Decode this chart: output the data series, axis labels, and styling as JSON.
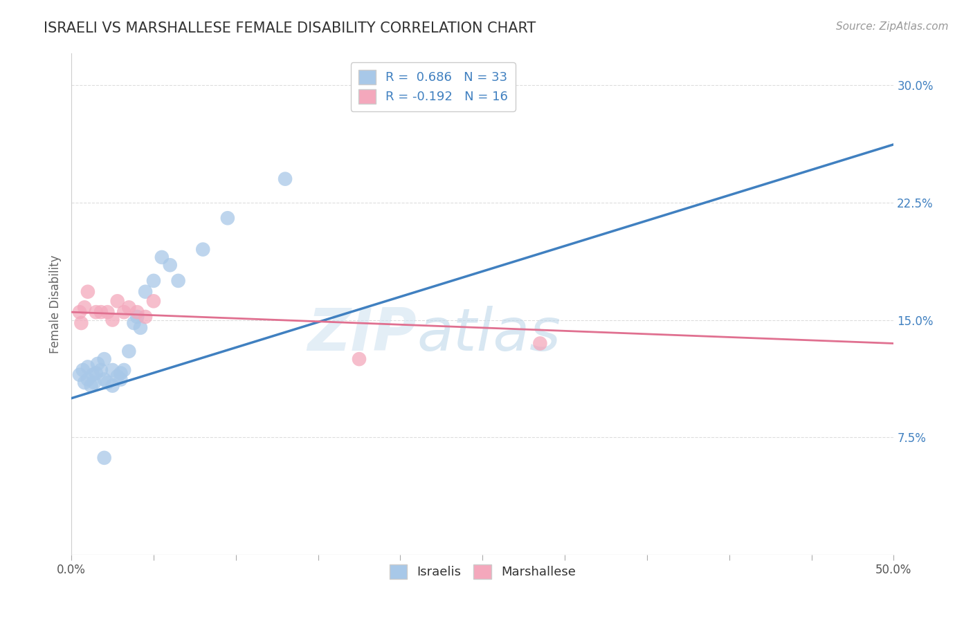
{
  "title": "ISRAELI VS MARSHALLESE FEMALE DISABILITY CORRELATION CHART",
  "source": "Source: ZipAtlas.com",
  "ylabel": "Female Disability",
  "xlim": [
    0.0,
    0.5
  ],
  "ylim": [
    0.0,
    0.32
  ],
  "xticks": [
    0.0,
    0.05,
    0.1,
    0.15,
    0.2,
    0.25,
    0.3,
    0.35,
    0.4,
    0.45,
    0.5
  ],
  "xtick_labels_visible": {
    "0.0": "0.0%",
    "0.5": "50.0%"
  },
  "yticks_right": [
    0.075,
    0.15,
    0.225,
    0.3
  ],
  "ytick_labels_right": [
    "7.5%",
    "15.0%",
    "22.5%",
    "30.0%"
  ],
  "israeli_color": "#a8c8e8",
  "marshallese_color": "#f4a8bc",
  "israeli_line_color": "#4080c0",
  "marshallese_line_color": "#e07090",
  "legend_r_israeli": "R =  0.686",
  "legend_n_israeli": "N = 33",
  "legend_r_marshallese": "R = -0.192",
  "legend_n_marshallese": "N = 16",
  "israeli_scatter_x": [
    0.005,
    0.007,
    0.008,
    0.01,
    0.01,
    0.012,
    0.013,
    0.014,
    0.015,
    0.016,
    0.018,
    0.02,
    0.02,
    0.022,
    0.025,
    0.025,
    0.028,
    0.03,
    0.03,
    0.032,
    0.035,
    0.038,
    0.04,
    0.042,
    0.045,
    0.05,
    0.055,
    0.06,
    0.065,
    0.08,
    0.095,
    0.13,
    0.02
  ],
  "israeli_scatter_y": [
    0.115,
    0.118,
    0.11,
    0.112,
    0.12,
    0.108,
    0.115,
    0.11,
    0.116,
    0.122,
    0.118,
    0.112,
    0.125,
    0.11,
    0.108,
    0.118,
    0.114,
    0.116,
    0.112,
    0.118,
    0.13,
    0.148,
    0.152,
    0.145,
    0.168,
    0.175,
    0.19,
    0.185,
    0.175,
    0.195,
    0.215,
    0.24,
    0.062
  ],
  "marshallese_scatter_x": [
    0.005,
    0.006,
    0.008,
    0.01,
    0.015,
    0.018,
    0.022,
    0.025,
    0.028,
    0.032,
    0.035,
    0.04,
    0.045,
    0.05,
    0.175,
    0.285
  ],
  "marshallese_scatter_y": [
    0.155,
    0.148,
    0.158,
    0.168,
    0.155,
    0.155,
    0.155,
    0.15,
    0.162,
    0.155,
    0.158,
    0.155,
    0.152,
    0.162,
    0.125,
    0.135
  ],
  "israeli_line_x": [
    0.0,
    0.5
  ],
  "israeli_line_y": [
    0.1,
    0.262
  ],
  "marshallese_line_x": [
    0.0,
    0.5
  ],
  "marshallese_line_y": [
    0.155,
    0.135
  ],
  "watermark_zip": "ZIP",
  "watermark_atlas": "atlas",
  "background_color": "#ffffff",
  "grid_color": "#dddddd",
  "title_color": "#333333",
  "axis_label_color": "#666666",
  "tick_color": "#aaaaaa"
}
